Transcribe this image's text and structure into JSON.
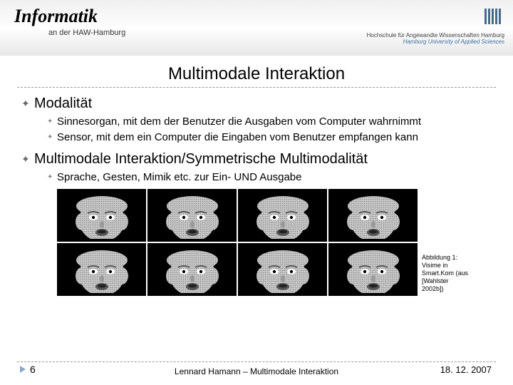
{
  "header": {
    "logo_text": "Informatik",
    "subtitle": "an der HAW-Hamburg",
    "institution1": "Hochschule für Angewandte Wissenschaften Hamburg",
    "institution2": "Hamburg University of Applied Sciences"
  },
  "title": "Multimodale Interaktion",
  "sections": [
    {
      "heading": "Modalität",
      "items": [
        "Sinnesorgan, mit dem der Benutzer die Ausgaben vom Computer wahrnimmt",
        "Sensor, mit dem ein Computer die Eingaben vom Benutzer empfangen kann"
      ]
    },
    {
      "heading": "Multimodale Interaktion/Symmetrische Multimodalität",
      "items": [
        "Sprache, Gesten, Mimik etc. zur Ein- UND Ausgabe"
      ]
    }
  ],
  "figure": {
    "rows": 2,
    "cols": 4,
    "caption": "Abbildung 1: Visime in Smart.Kom (aus [Wahlster 2002b])"
  },
  "footer": {
    "page": "6",
    "center": "Lennard Hamann – Multimodale Interaktion",
    "date": "18. 12. 2007"
  },
  "colors": {
    "accent": "#8aa8c8",
    "inst_blue": "#3a6ea5",
    "marker": "#777777"
  }
}
